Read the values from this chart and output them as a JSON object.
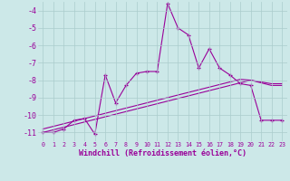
{
  "x_values": [
    0,
    1,
    2,
    3,
    4,
    5,
    6,
    7,
    8,
    9,
    10,
    11,
    12,
    13,
    14,
    15,
    16,
    17,
    18,
    19,
    20,
    21,
    22,
    23
  ],
  "y_main": [
    -11.0,
    -11.0,
    -10.8,
    -10.3,
    -10.2,
    -11.1,
    -7.7,
    -9.3,
    -8.3,
    -7.6,
    -7.5,
    -7.5,
    -3.6,
    -5.0,
    -5.4,
    -7.3,
    -6.2,
    -7.3,
    -7.7,
    -8.2,
    -8.3,
    -10.3,
    -10.3,
    -10.3
  ],
  "y_ref1": [
    -11.0,
    -10.85,
    -10.7,
    -10.55,
    -10.4,
    -10.25,
    -10.1,
    -9.95,
    -9.8,
    -9.65,
    -9.5,
    -9.35,
    -9.2,
    -9.05,
    -8.9,
    -8.75,
    -8.6,
    -8.45,
    -8.3,
    -8.15,
    -8.0,
    -8.15,
    -8.3,
    -8.3
  ],
  "y_ref2": [
    -10.8,
    -10.65,
    -10.5,
    -10.35,
    -10.2,
    -10.05,
    -9.9,
    -9.75,
    -9.6,
    -9.45,
    -9.3,
    -9.15,
    -9.0,
    -8.85,
    -8.7,
    -8.55,
    -8.4,
    -8.25,
    -8.1,
    -7.95,
    -8.0,
    -8.1,
    -8.2,
    -8.2
  ],
  "color": "#990099",
  "bg_color": "#cce8e8",
  "grid_color": "#aacccc",
  "xlabel": "Windchill (Refroidissement éolien,°C)",
  "ylim": [
    -11.5,
    -3.5
  ],
  "xlim": [
    -0.5,
    23.5
  ],
  "yticks": [
    -11,
    -10,
    -9,
    -8,
    -7,
    -6,
    -5,
    -4
  ],
  "xticks": [
    0,
    1,
    2,
    3,
    4,
    5,
    6,
    7,
    8,
    9,
    10,
    11,
    12,
    13,
    14,
    15,
    16,
    17,
    18,
    19,
    20,
    21,
    22,
    23
  ]
}
